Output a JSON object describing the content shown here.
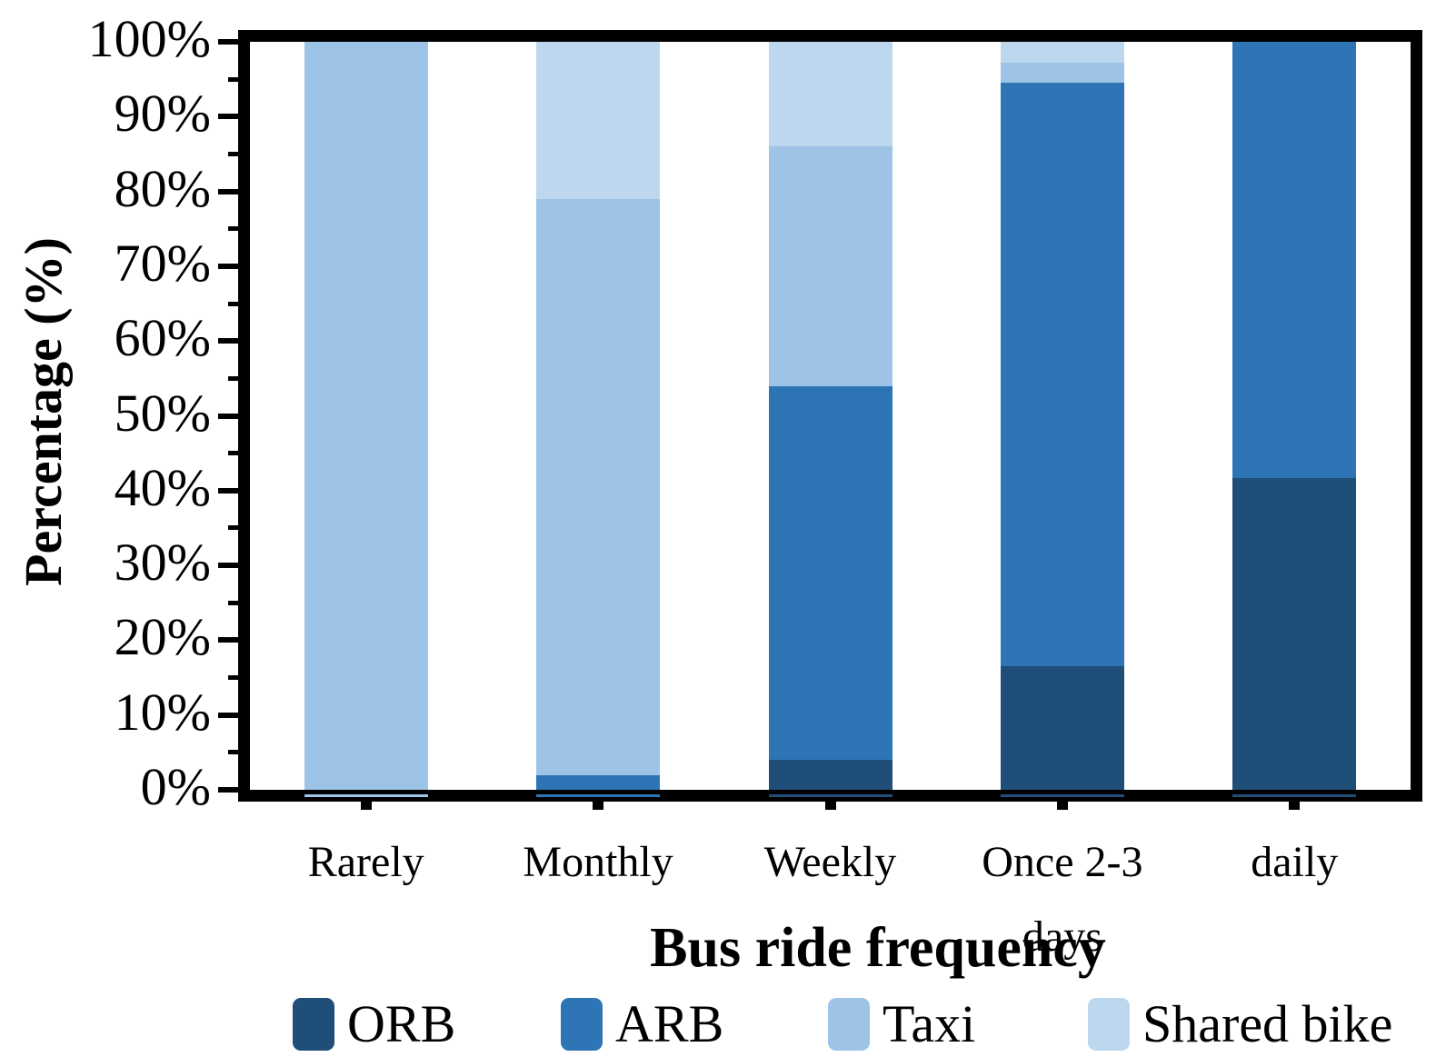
{
  "chart_data": {
    "type": "bar",
    "stacked": true,
    "orientation": "vertical",
    "title": "",
    "xlabel": "Bus ride frequency",
    "ylabel": "Percentage (%)",
    "categories": [
      "Rarely",
      "Monthly",
      "Weekly",
      "Once 2-3 days",
      "daily"
    ],
    "series": [
      {
        "name": "ORB",
        "color": "#1F4E79",
        "values": [
          0,
          0,
          4,
          16.5,
          41.7
        ]
      },
      {
        "name": "ARB",
        "color": "#2E75B6",
        "values": [
          0,
          2,
          50,
          78,
          58.3
        ]
      },
      {
        "name": "Taxi",
        "color": "#9DC3E6",
        "values": [
          100,
          77,
          32,
          2.7,
          0
        ]
      },
      {
        "name": "Shared bike",
        "color": "#BDD7EE",
        "values": [
          0,
          21,
          14,
          2.8,
          0
        ]
      }
    ],
    "ylim": [
      0,
      100
    ],
    "y_tick_labels": [
      "0%",
      "10%",
      "20%",
      "30%",
      "40%",
      "50%",
      "60%",
      "70%",
      "80%",
      "90%",
      "100%"
    ],
    "y_minor_tick_step": 5,
    "grid": false,
    "legend_position": "bottom",
    "axis_color": "#000000",
    "plot_border": "thick-black"
  }
}
